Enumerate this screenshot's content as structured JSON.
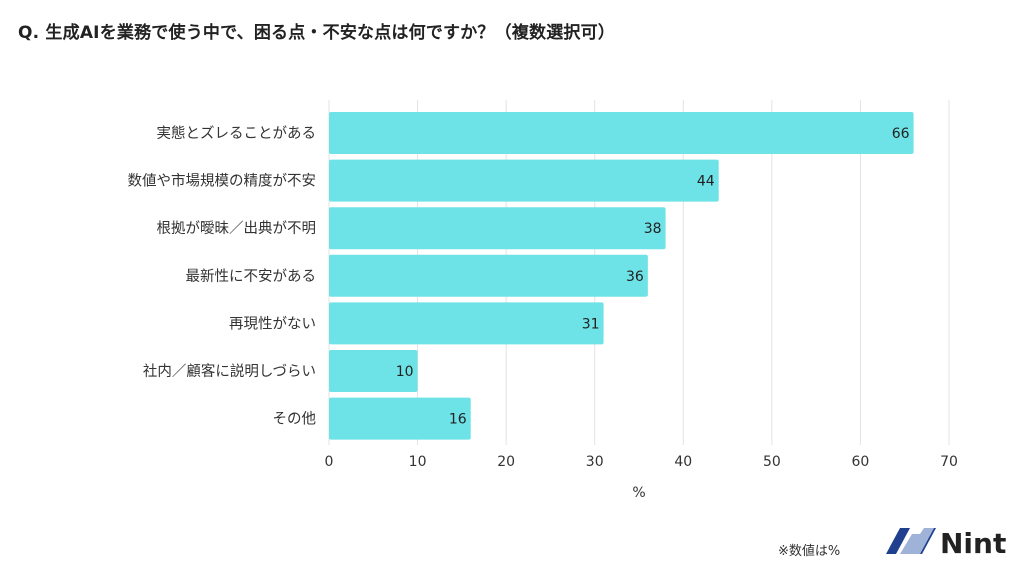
{
  "title": "Q. 生成AIを業務で使う中で、困る点・不安な点は何ですか？（複数選択可）",
  "note": "※数値は%",
  "logo": {
    "text": "Nint",
    "colors": [
      "#1f3f8f",
      "#9fb3d8"
    ]
  },
  "chart_data": {
    "type": "bar",
    "orientation": "horizontal",
    "title": "Q. 生成AIを業務で使う中で、困る点・不安な点は何ですか？（複数選択可）",
    "categories": [
      "実態とズレることがある",
      "数値や市場規模の精度が不安",
      "根拠が曖昧／出典が不明",
      "最新性に不安がある",
      "再現性がない",
      "社内／顧客に説明しづらい",
      "その他"
    ],
    "values": [
      66,
      44,
      38,
      36,
      31,
      10,
      16
    ],
    "xlabel": "%",
    "xlim": [
      0,
      70
    ],
    "xticks": [
      0,
      10,
      20,
      30,
      40,
      50,
      60,
      70
    ],
    "grid": true,
    "bar_color": "#6ee3e7",
    "data_labels": true
  }
}
